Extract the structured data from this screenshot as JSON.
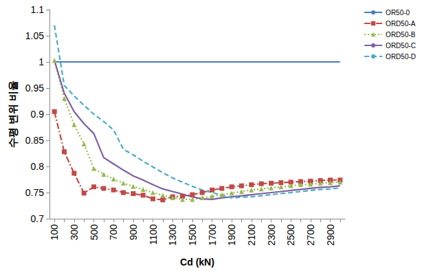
{
  "chart_data": {
    "type": "line",
    "x_label": "Cd (kN)",
    "y_label": "수평 변위 비율",
    "categories": [
      "100",
      null,
      "300",
      null,
      "500",
      null,
      "700",
      null,
      "900",
      null,
      "1100",
      null,
      "1300",
      null,
      "1500",
      null,
      "1700",
      null,
      "1900",
      null,
      "2100",
      null,
      "2300",
      null,
      "2500",
      null,
      "2700",
      null,
      "2900",
      null
    ],
    "ylim": [
      0.7,
      1.1
    ],
    "yticks": [
      0.7,
      0.75,
      0.8,
      0.85,
      0.9,
      0.95,
      1,
      1.05,
      1.1
    ],
    "grid": false,
    "legend": "right",
    "series": [
      {
        "name": "OR50-0",
        "color": "#4a7ebb",
        "marker": "none",
        "line_style": "solid",
        "values": [
          1,
          1,
          1,
          1,
          1,
          1,
          1,
          1,
          1,
          1,
          1,
          1,
          1,
          1,
          1,
          1,
          1,
          1,
          1,
          1,
          1,
          1,
          1,
          1,
          1,
          1,
          1,
          1,
          1,
          1
        ]
      },
      {
        "name": "ORD50-A",
        "color": "#be4b48",
        "marker": "square",
        "line_style": "dashdot",
        "values": [
          0.905,
          0.828,
          0.787,
          0.749,
          0.761,
          0.758,
          0.755,
          0.75,
          0.748,
          0.745,
          0.738,
          0.736,
          0.742,
          0.743,
          0.746,
          0.75,
          0.755,
          0.758,
          0.761,
          0.763,
          0.765,
          0.767,
          0.768,
          0.769,
          0.77,
          0.771,
          0.772,
          0.773,
          0.774,
          0.774
        ]
      },
      {
        "name": "ORD50-B",
        "color": "#98b954",
        "marker": "triangle",
        "line_style": "dotted",
        "values": [
          1.003,
          0.93,
          0.88,
          0.843,
          0.796,
          0.785,
          0.776,
          0.768,
          0.762,
          0.756,
          0.75,
          0.745,
          0.74,
          0.737,
          0.737,
          0.74,
          0.743,
          0.746,
          0.749,
          0.752,
          0.755,
          0.757,
          0.759,
          0.761,
          0.763,
          0.765,
          0.766,
          0.768,
          0.769,
          0.77
        ]
      },
      {
        "name": "ORD50-C",
        "color": "#7d60a0",
        "marker": "none",
        "line_style": "solid",
        "values": [
          1.003,
          0.94,
          0.905,
          0.882,
          0.863,
          0.817,
          0.805,
          0.793,
          0.782,
          0.774,
          0.765,
          0.757,
          0.752,
          0.747,
          0.742,
          0.738,
          0.737,
          0.74,
          0.742,
          0.744,
          0.746,
          0.748,
          0.75,
          0.752,
          0.754,
          0.756,
          0.758,
          0.76,
          0.761,
          0.763
        ]
      },
      {
        "name": "ORD50-D",
        "color": "#4bacc6",
        "marker": "none",
        "line_style": "dashed",
        "values": [
          1.07,
          0.955,
          0.935,
          0.917,
          0.9,
          0.886,
          0.87,
          0.833,
          0.822,
          0.81,
          0.799,
          0.788,
          0.778,
          0.77,
          0.762,
          0.755,
          0.75,
          0.745,
          0.74,
          0.741,
          0.742,
          0.744,
          0.746,
          0.748,
          0.75,
          0.752,
          0.754,
          0.756,
          0.757,
          0.759
        ]
      }
    ]
  }
}
